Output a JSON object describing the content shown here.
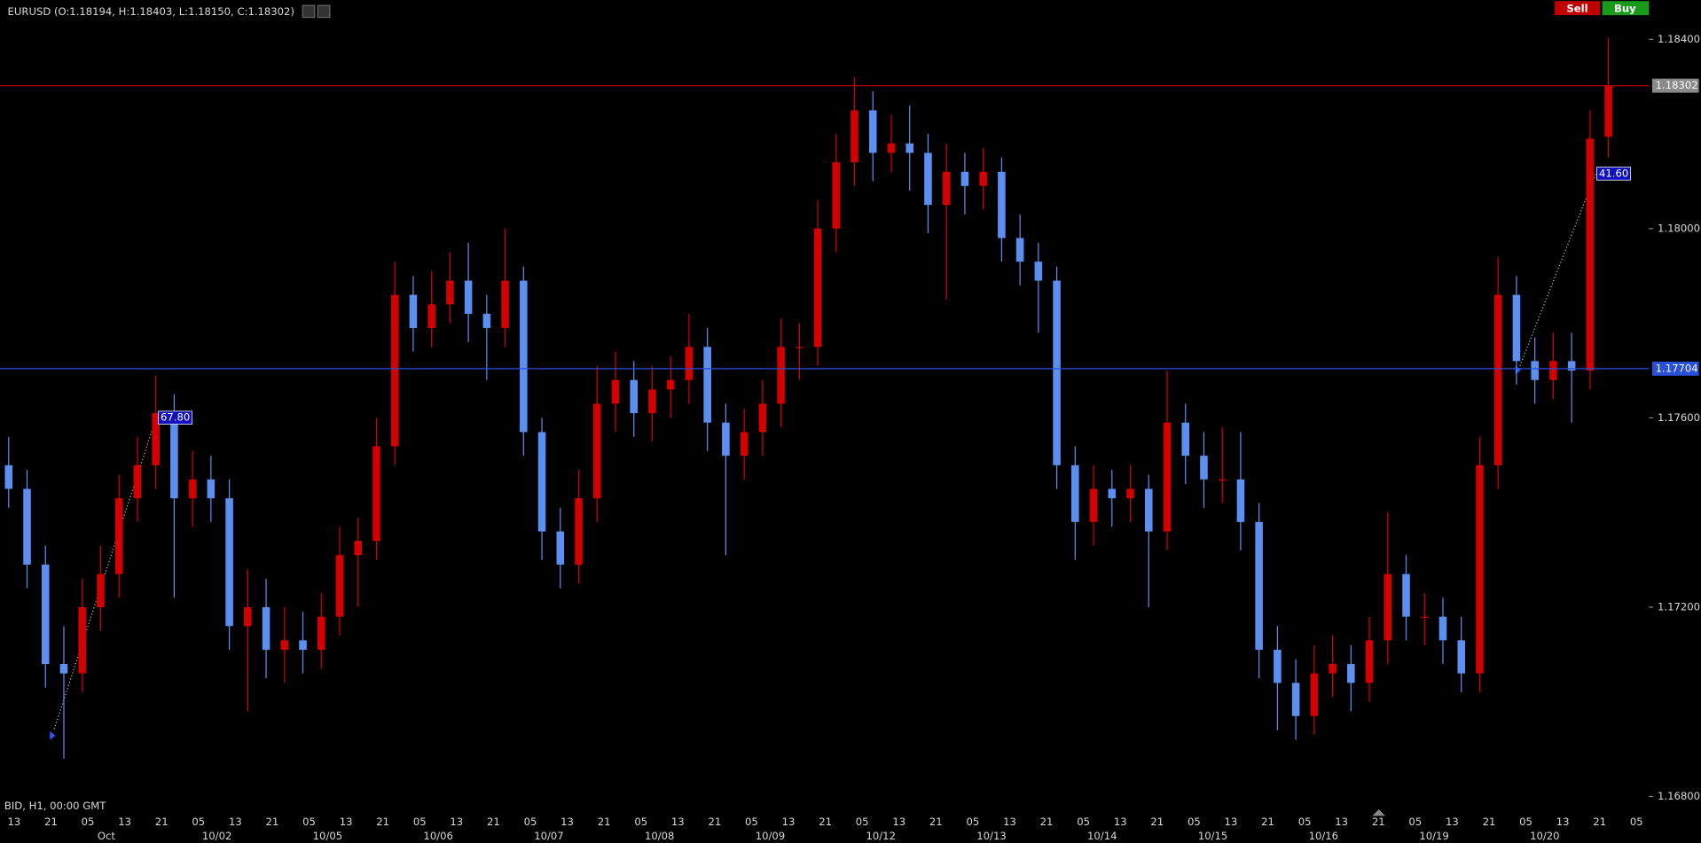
{
  "chart_data": {
    "type": "candlestick",
    "title": "EURUSD (O:1.18194, H:1.18403, L:1.18150, C:1.18302)",
    "footer": "BID, H1, 00:00 GMT",
    "buttons": [
      "Sell",
      "Buy"
    ],
    "annotations": [
      "67.80",
      "41.60"
    ],
    "up_color": "#d40000",
    "down_color": "#5b8ff0",
    "ylim": [
      1.16759,
      1.18483
    ],
    "yticks": [
      {
        "value": 1.168,
        "label": "1.16800"
      },
      {
        "value": 1.172,
        "label": "1.17200"
      },
      {
        "value": 1.176,
        "label": "1.17600"
      },
      {
        "value": 1.18,
        "label": "1.18000"
      },
      {
        "value": 1.184,
        "label": "1.18400"
      }
    ],
    "hlines": [
      {
        "value": 1.18302,
        "color": "#b00000"
      },
      {
        "value": 1.17704,
        "color": "#2a4fd8"
      }
    ],
    "x_labels": [
      "13",
      "21",
      "05",
      "13",
      "21",
      "05",
      "13",
      "21",
      "05",
      "13",
      "21",
      "05",
      "13",
      "21",
      "05",
      "13",
      "21",
      "05",
      "13",
      "21",
      "05",
      "13",
      "21",
      "05",
      "13",
      "21",
      "05",
      "13",
      "21",
      "05",
      "13",
      "21",
      "05",
      "13",
      "21",
      "05",
      "13",
      "21",
      "05",
      "13",
      "21",
      "05",
      "13",
      "21",
      "05"
    ],
    "date_labels": [
      "Oct",
      "10/02",
      "10/05",
      "10/06",
      "10/07",
      "10/08",
      "10/09",
      "10/12",
      "10/13",
      "10/14",
      "10/15",
      "10/16",
      "10/19",
      "10/20"
    ],
    "candles": [
      [
        1.175,
        1.1756,
        1.1741,
        1.1745
      ],
      [
        1.1745,
        1.1749,
        1.1724,
        1.1729
      ],
      [
        1.1729,
        1.1733,
        1.1703,
        1.1708
      ],
      [
        1.1708,
        1.1716,
        1.1688,
        1.1706
      ],
      [
        1.1706,
        1.1726,
        1.1702,
        1.172
      ],
      [
        1.172,
        1.1733,
        1.1715,
        1.1727
      ],
      [
        1.1727,
        1.1748,
        1.1722,
        1.1743
      ],
      [
        1.1743,
        1.1756,
        1.1738,
        1.175
      ],
      [
        1.175,
        1.1769,
        1.1745,
        1.1761
      ],
      [
        1.1761,
        1.1765,
        1.1722,
        1.1743
      ],
      [
        1.1743,
        1.1753,
        1.1737,
        1.1747
      ],
      [
        1.1747,
        1.1752,
        1.1738,
        1.1743
      ],
      [
        1.1743,
        1.1747,
        1.1711,
        1.1716
      ],
      [
        1.1716,
        1.1728,
        1.1698,
        1.172
      ],
      [
        1.172,
        1.1726,
        1.1705,
        1.1711
      ],
      [
        1.1711,
        1.172,
        1.1704,
        1.1713
      ],
      [
        1.1713,
        1.1719,
        1.1706,
        1.1711
      ],
      [
        1.1711,
        1.1723,
        1.1707,
        1.1718
      ],
      [
        1.1718,
        1.1737,
        1.1714,
        1.1731
      ],
      [
        1.1731,
        1.1739,
        1.172,
        1.1734
      ],
      [
        1.1734,
        1.176,
        1.173,
        1.1754
      ],
      [
        1.1754,
        1.1793,
        1.175,
        1.1786
      ],
      [
        1.1786,
        1.179,
        1.1774,
        1.1779
      ],
      [
        1.1779,
        1.1791,
        1.1775,
        1.1784
      ],
      [
        1.1784,
        1.1795,
        1.178,
        1.1789
      ],
      [
        1.1789,
        1.1797,
        1.1776,
        1.1782
      ],
      [
        1.1782,
        1.1786,
        1.1768,
        1.1779
      ],
      [
        1.1779,
        1.18,
        1.1775,
        1.1789
      ],
      [
        1.1789,
        1.1792,
        1.1752,
        1.1757
      ],
      [
        1.1757,
        1.176,
        1.173,
        1.1736
      ],
      [
        1.1736,
        1.1741,
        1.1724,
        1.1729
      ],
      [
        1.1729,
        1.1749,
        1.1725,
        1.1743
      ],
      [
        1.1743,
        1.1771,
        1.1738,
        1.1763
      ],
      [
        1.1763,
        1.1774,
        1.1757,
        1.1768
      ],
      [
        1.1768,
        1.1772,
        1.1756,
        1.1761
      ],
      [
        1.1761,
        1.1771,
        1.1755,
        1.1766
      ],
      [
        1.1766,
        1.1773,
        1.176,
        1.1768
      ],
      [
        1.1768,
        1.1782,
        1.1763,
        1.1775
      ],
      [
        1.1775,
        1.1779,
        1.1753,
        1.1759
      ],
      [
        1.1759,
        1.1763,
        1.1731,
        1.1752
      ],
      [
        1.1752,
        1.1762,
        1.1747,
        1.1757
      ],
      [
        1.1757,
        1.1768,
        1.1752,
        1.1763
      ],
      [
        1.1763,
        1.1781,
        1.1758,
        1.1775
      ],
      [
        1.1775,
        1.178,
        1.1768,
        1.1775
      ],
      [
        1.1775,
        1.1806,
        1.1771,
        1.18
      ],
      [
        1.18,
        1.182,
        1.1795,
        1.1814
      ],
      [
        1.1814,
        1.1832,
        1.1809,
        1.1825
      ],
      [
        1.1825,
        1.1829,
        1.181,
        1.1816
      ],
      [
        1.1816,
        1.1824,
        1.1812,
        1.1818
      ],
      [
        1.1818,
        1.1826,
        1.1808,
        1.1816
      ],
      [
        1.1816,
        1.182,
        1.1799,
        1.1805
      ],
      [
        1.1805,
        1.1818,
        1.1785,
        1.1812
      ],
      [
        1.1812,
        1.1816,
        1.1803,
        1.1809
      ],
      [
        1.1809,
        1.1817,
        1.1804,
        1.1812
      ],
      [
        1.1812,
        1.1815,
        1.1793,
        1.1798
      ],
      [
        1.1798,
        1.1803,
        1.1788,
        1.1793
      ],
      [
        1.1793,
        1.1797,
        1.1778,
        1.1789
      ],
      [
        1.1789,
        1.1792,
        1.1745,
        1.175
      ],
      [
        1.175,
        1.1754,
        1.173,
        1.1738
      ],
      [
        1.1738,
        1.175,
        1.1733,
        1.1745
      ],
      [
        1.1745,
        1.1749,
        1.1737,
        1.1743
      ],
      [
        1.1743,
        1.175,
        1.1738,
        1.1745
      ],
      [
        1.1745,
        1.1748,
        1.172,
        1.1736
      ],
      [
        1.1736,
        1.177,
        1.1732,
        1.1759
      ],
      [
        1.1759,
        1.1763,
        1.1746,
        1.1752
      ],
      [
        1.1752,
        1.1757,
        1.1741,
        1.1747
      ],
      [
        1.1747,
        1.1758,
        1.1742,
        1.1747
      ],
      [
        1.1747,
        1.1757,
        1.1732,
        1.1738
      ],
      [
        1.1738,
        1.1742,
        1.1705,
        1.1711
      ],
      [
        1.1711,
        1.1716,
        1.1694,
        1.1704
      ],
      [
        1.1704,
        1.1709,
        1.1692,
        1.1697
      ],
      [
        1.1697,
        1.1712,
        1.1693,
        1.1706
      ],
      [
        1.1706,
        1.1714,
        1.1701,
        1.1708
      ],
      [
        1.1708,
        1.1712,
        1.1698,
        1.1704
      ],
      [
        1.1704,
        1.1718,
        1.17,
        1.1713
      ],
      [
        1.1713,
        1.174,
        1.1708,
        1.1727
      ],
      [
        1.1727,
        1.1731,
        1.1713,
        1.1718
      ],
      [
        1.1718,
        1.1723,
        1.1712,
        1.1718
      ],
      [
        1.1718,
        1.1722,
        1.1708,
        1.1713
      ],
      [
        1.1713,
        1.1718,
        1.1702,
        1.1706
      ],
      [
        1.1706,
        1.1756,
        1.1702,
        1.175
      ],
      [
        1.175,
        1.1794,
        1.1745,
        1.1786
      ],
      [
        1.1786,
        1.179,
        1.1767,
        1.1772
      ],
      [
        1.1772,
        1.1777,
        1.1763,
        1.1768
      ],
      [
        1.1768,
        1.1778,
        1.1764,
        1.1772
      ],
      [
        1.1772,
        1.1778,
        1.1759,
        1.177
      ],
      [
        1.177,
        1.1825,
        1.1766,
        1.1819
      ],
      [
        1.18194,
        1.18403,
        1.1815,
        1.18302
      ]
    ]
  }
}
